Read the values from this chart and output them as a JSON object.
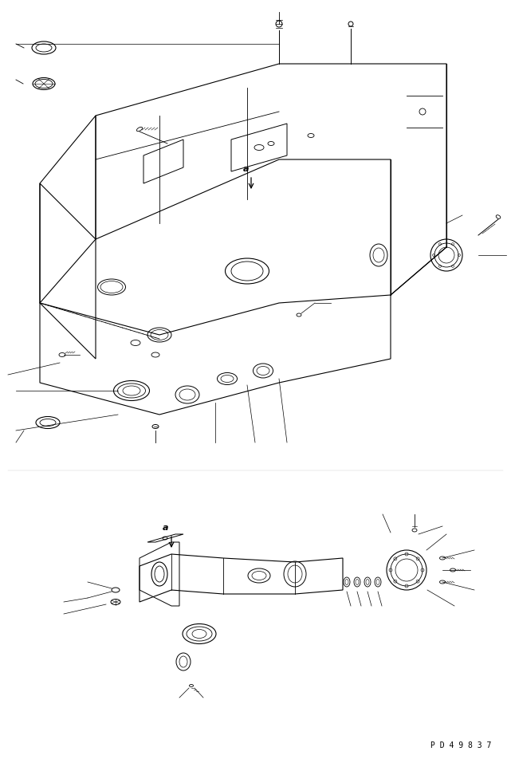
{
  "bg_color": "#ffffff",
  "line_color": "#000000",
  "fig_width": 6.41,
  "fig_height": 9.52,
  "dpi": 100,
  "watermark": "P D 4 9 8 3 7",
  "label_a": "a"
}
